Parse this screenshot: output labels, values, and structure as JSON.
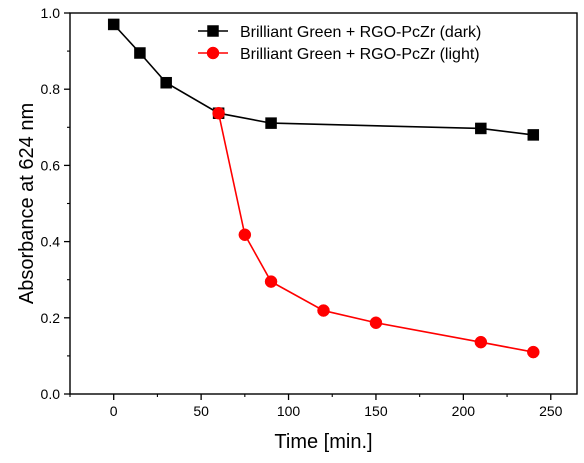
{
  "chart_data": {
    "type": "line",
    "title": "",
    "xlabel": "Time [min.]",
    "ylabel": "Absorbance at 624 nm",
    "xlim": [
      -25,
      265
    ],
    "ylim": [
      0.0,
      1.0
    ],
    "x_ticks": [
      0,
      50,
      100,
      150,
      200,
      250
    ],
    "x_tick_labels": [
      "0",
      "50",
      "100",
      "150",
      "200",
      "250"
    ],
    "y_ticks": [
      0.0,
      0.2,
      0.4,
      0.6,
      0.8,
      1.0
    ],
    "y_tick_labels": [
      "0.0",
      "0.2",
      "0.4",
      "0.6",
      "0.8",
      "1.0"
    ],
    "grid": false,
    "legend_position": "top-right",
    "series": [
      {
        "name": "Brilliant Green + RGO-PcZr (dark)",
        "color": "#000000",
        "marker": "square",
        "x": [
          0,
          15,
          30,
          60,
          90,
          210,
          240
        ],
        "y": [
          0.97,
          0.895,
          0.817,
          0.737,
          0.711,
          0.697,
          0.68
        ]
      },
      {
        "name": "Brilliant Green + RGO-PcZr (light)",
        "color": "#ff0000",
        "marker": "circle",
        "x": [
          60,
          75,
          90,
          120,
          150,
          210,
          240
        ],
        "y": [
          0.737,
          0.418,
          0.295,
          0.219,
          0.187,
          0.136,
          0.11
        ]
      }
    ]
  }
}
